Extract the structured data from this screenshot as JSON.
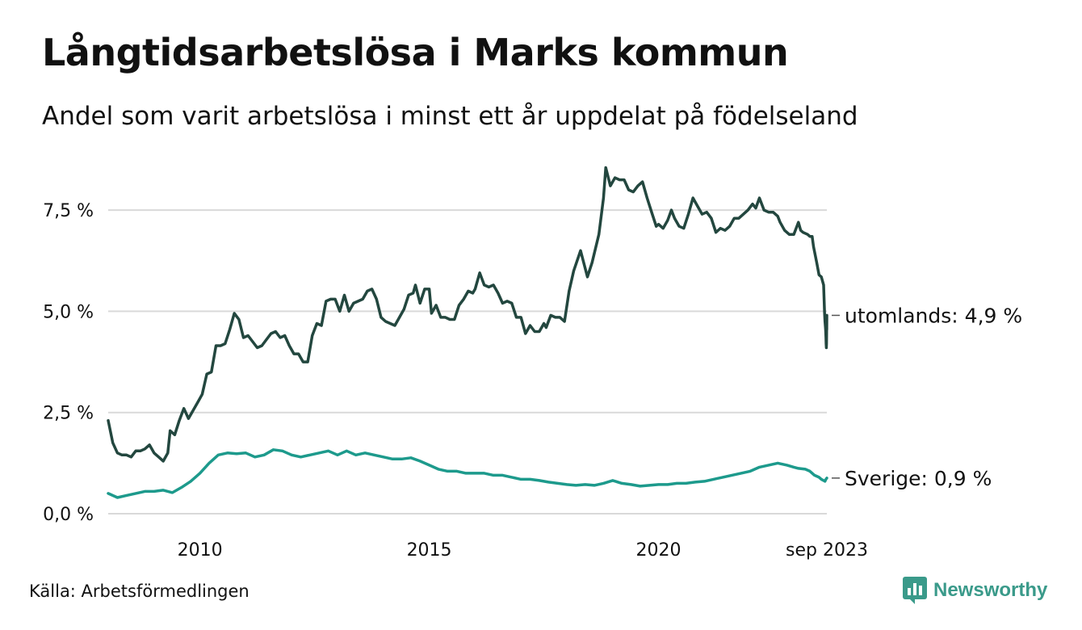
{
  "title": "Långtidsarbetslösa i Marks kommun",
  "subtitle": "Andel som varit arbetslösa i minst ett år uppdelat på födelseland",
  "source": "Källa: Arbetsförmedlingen",
  "brand": "Newsworthy",
  "colors": {
    "utomlands": "#23473f",
    "sverige": "#1d9a8c",
    "grid": "#d9d9d9",
    "brand": "#3a9a8a"
  },
  "chart_data": {
    "type": "line",
    "title": "Långtidsarbetslösa i Marks kommun",
    "ylim": [
      0,
      8.8
    ],
    "xlim": [
      2008.0,
      2023.67
    ],
    "yticks": [
      {
        "value": 0,
        "label": "0,0 %"
      },
      {
        "value": 2.5,
        "label": "2,5 %"
      },
      {
        "value": 5.0,
        "label": "5,0 %"
      },
      {
        "value": 7.5,
        "label": "7,5 %"
      }
    ],
    "xticks": [
      {
        "value": 2010,
        "label": "2010"
      },
      {
        "value": 2015,
        "label": "2015"
      },
      {
        "value": 2020,
        "label": "2020"
      },
      {
        "value": 2023.67,
        "label": "sep 2023"
      }
    ],
    "grid": true,
    "series": [
      {
        "name": "utomlands",
        "label": "utomlands: 4,9 %",
        "points": [
          [
            2008.0,
            2.3
          ],
          [
            2008.1,
            1.75
          ],
          [
            2008.2,
            1.5
          ],
          [
            2008.3,
            1.45
          ],
          [
            2008.4,
            1.45
          ],
          [
            2008.5,
            1.4
          ],
          [
            2008.6,
            1.55
          ],
          [
            2008.7,
            1.55
          ],
          [
            2008.8,
            1.6
          ],
          [
            2008.9,
            1.7
          ],
          [
            2009.0,
            1.5
          ],
          [
            2009.1,
            1.4
          ],
          [
            2009.2,
            1.3
          ],
          [
            2009.3,
            1.5
          ],
          [
            2009.35,
            2.05
          ],
          [
            2009.45,
            1.95
          ],
          [
            2009.55,
            2.3
          ],
          [
            2009.65,
            2.6
          ],
          [
            2009.75,
            2.35
          ],
          [
            2009.85,
            2.55
          ],
          [
            2009.95,
            2.75
          ],
          [
            2010.05,
            2.95
          ],
          [
            2010.15,
            3.45
          ],
          [
            2010.25,
            3.5
          ],
          [
            2010.35,
            4.15
          ],
          [
            2010.45,
            4.15
          ],
          [
            2010.55,
            4.2
          ],
          [
            2010.65,
            4.55
          ],
          [
            2010.75,
            4.95
          ],
          [
            2010.85,
            4.8
          ],
          [
            2010.95,
            4.35
          ],
          [
            2011.05,
            4.4
          ],
          [
            2011.15,
            4.25
          ],
          [
            2011.25,
            4.1
          ],
          [
            2011.35,
            4.15
          ],
          [
            2011.45,
            4.3
          ],
          [
            2011.55,
            4.45
          ],
          [
            2011.65,
            4.5
          ],
          [
            2011.75,
            4.35
          ],
          [
            2011.85,
            4.4
          ],
          [
            2011.95,
            4.15
          ],
          [
            2012.05,
            3.95
          ],
          [
            2012.15,
            3.95
          ],
          [
            2012.25,
            3.75
          ],
          [
            2012.35,
            3.75
          ],
          [
            2012.45,
            4.4
          ],
          [
            2012.55,
            4.7
          ],
          [
            2012.65,
            4.65
          ],
          [
            2012.75,
            5.25
          ],
          [
            2012.85,
            5.3
          ],
          [
            2012.95,
            5.3
          ],
          [
            2013.05,
            5.0
          ],
          [
            2013.15,
            5.4
          ],
          [
            2013.25,
            5.0
          ],
          [
            2013.35,
            5.2
          ],
          [
            2013.45,
            5.25
          ],
          [
            2013.55,
            5.3
          ],
          [
            2013.65,
            5.5
          ],
          [
            2013.75,
            5.55
          ],
          [
            2013.85,
            5.3
          ],
          [
            2013.95,
            4.85
          ],
          [
            2014.05,
            4.75
          ],
          [
            2014.15,
            4.7
          ],
          [
            2014.25,
            4.65
          ],
          [
            2014.35,
            4.85
          ],
          [
            2014.45,
            5.05
          ],
          [
            2014.55,
            5.4
          ],
          [
            2014.65,
            5.45
          ],
          [
            2014.7,
            5.65
          ],
          [
            2014.8,
            5.2
          ],
          [
            2014.9,
            5.55
          ],
          [
            2015.0,
            5.55
          ],
          [
            2015.05,
            4.95
          ],
          [
            2015.15,
            5.15
          ],
          [
            2015.25,
            4.85
          ],
          [
            2015.35,
            4.85
          ],
          [
            2015.45,
            4.8
          ],
          [
            2015.55,
            4.8
          ],
          [
            2015.65,
            5.15
          ],
          [
            2015.75,
            5.3
          ],
          [
            2015.85,
            5.5
          ],
          [
            2015.95,
            5.45
          ],
          [
            2016.0,
            5.55
          ],
          [
            2016.1,
            5.95
          ],
          [
            2016.2,
            5.65
          ],
          [
            2016.3,
            5.6
          ],
          [
            2016.4,
            5.65
          ],
          [
            2016.5,
            5.45
          ],
          [
            2016.6,
            5.2
          ],
          [
            2016.7,
            5.25
          ],
          [
            2016.8,
            5.2
          ],
          [
            2016.9,
            4.85
          ],
          [
            2017.0,
            4.85
          ],
          [
            2017.1,
            4.45
          ],
          [
            2017.2,
            4.65
          ],
          [
            2017.3,
            4.5
          ],
          [
            2017.4,
            4.5
          ],
          [
            2017.5,
            4.7
          ],
          [
            2017.55,
            4.6
          ],
          [
            2017.65,
            4.9
          ],
          [
            2017.75,
            4.85
          ],
          [
            2017.85,
            4.85
          ],
          [
            2017.95,
            4.75
          ],
          [
            2018.05,
            5.5
          ],
          [
            2018.15,
            6.0
          ],
          [
            2018.3,
            6.5
          ],
          [
            2018.45,
            5.85
          ],
          [
            2018.55,
            6.2
          ],
          [
            2018.7,
            6.9
          ],
          [
            2018.8,
            7.8
          ],
          [
            2018.85,
            8.55
          ],
          [
            2018.95,
            8.1
          ],
          [
            2019.05,
            8.3
          ],
          [
            2019.15,
            8.25
          ],
          [
            2019.25,
            8.25
          ],
          [
            2019.35,
            8.0
          ],
          [
            2019.45,
            7.95
          ],
          [
            2019.55,
            8.1
          ],
          [
            2019.65,
            8.2
          ],
          [
            2019.75,
            7.8
          ],
          [
            2019.85,
            7.45
          ],
          [
            2019.95,
            7.1
          ],
          [
            2020.0,
            7.15
          ],
          [
            2020.1,
            7.05
          ],
          [
            2020.2,
            7.25
          ],
          [
            2020.28,
            7.5
          ],
          [
            2020.35,
            7.3
          ],
          [
            2020.45,
            7.1
          ],
          [
            2020.55,
            7.05
          ],
          [
            2020.65,
            7.4
          ],
          [
            2020.75,
            7.8
          ],
          [
            2020.85,
            7.6
          ],
          [
            2020.95,
            7.4
          ],
          [
            2021.05,
            7.45
          ],
          [
            2021.15,
            7.3
          ],
          [
            2021.25,
            6.95
          ],
          [
            2021.35,
            7.05
          ],
          [
            2021.45,
            7.0
          ],
          [
            2021.55,
            7.1
          ],
          [
            2021.65,
            7.3
          ],
          [
            2021.75,
            7.3
          ],
          [
            2021.85,
            7.4
          ],
          [
            2021.95,
            7.5
          ],
          [
            2022.05,
            7.65
          ],
          [
            2022.12,
            7.55
          ],
          [
            2022.2,
            7.8
          ],
          [
            2022.3,
            7.5
          ],
          [
            2022.4,
            7.45
          ],
          [
            2022.5,
            7.45
          ],
          [
            2022.6,
            7.35
          ],
          [
            2022.65,
            7.2
          ],
          [
            2022.75,
            7.0
          ],
          [
            2022.85,
            6.9
          ],
          [
            2022.95,
            6.9
          ],
          [
            2023.05,
            7.2
          ],
          [
            2023.1,
            7.0
          ],
          [
            2023.15,
            6.95
          ],
          [
            2023.25,
            6.9
          ],
          [
            2023.3,
            6.85
          ],
          [
            2023.35,
            6.85
          ],
          [
            2023.38,
            6.6
          ],
          [
            2023.45,
            6.2
          ],
          [
            2023.5,
            5.9
          ],
          [
            2023.55,
            5.85
          ],
          [
            2023.6,
            5.65
          ],
          [
            2023.62,
            4.95
          ],
          [
            2023.63,
            4.75
          ],
          [
            2023.64,
            4.6
          ],
          [
            2023.645,
            4.5
          ],
          [
            2023.65,
            4.35
          ],
          [
            2023.655,
            4.2
          ],
          [
            2023.66,
            4.1
          ],
          [
            2023.663,
            4.2
          ],
          [
            2023.665,
            4.4
          ],
          [
            2023.667,
            4.7
          ],
          [
            2023.668,
            4.55
          ],
          [
            2023.669,
            4.6
          ],
          [
            2023.67,
            4.9
          ]
        ]
      },
      {
        "name": "Sverige",
        "label": "Sverige: 0,9 %",
        "points": [
          [
            2008.0,
            0.5
          ],
          [
            2008.2,
            0.4
          ],
          [
            2008.4,
            0.45
          ],
          [
            2008.6,
            0.5
          ],
          [
            2008.8,
            0.55
          ],
          [
            2009.0,
            0.55
          ],
          [
            2009.2,
            0.58
          ],
          [
            2009.4,
            0.52
          ],
          [
            2009.6,
            0.65
          ],
          [
            2009.8,
            0.8
          ],
          [
            2010.0,
            1.0
          ],
          [
            2010.2,
            1.25
          ],
          [
            2010.4,
            1.45
          ],
          [
            2010.6,
            1.5
          ],
          [
            2010.8,
            1.48
          ],
          [
            2011.0,
            1.5
          ],
          [
            2011.2,
            1.4
          ],
          [
            2011.4,
            1.45
          ],
          [
            2011.6,
            1.58
          ],
          [
            2011.8,
            1.55
          ],
          [
            2012.0,
            1.45
          ],
          [
            2012.2,
            1.4
          ],
          [
            2012.4,
            1.45
          ],
          [
            2012.6,
            1.5
          ],
          [
            2012.8,
            1.55
          ],
          [
            2013.0,
            1.45
          ],
          [
            2013.2,
            1.55
          ],
          [
            2013.4,
            1.45
          ],
          [
            2013.6,
            1.5
          ],
          [
            2013.8,
            1.45
          ],
          [
            2014.0,
            1.4
          ],
          [
            2014.2,
            1.35
          ],
          [
            2014.4,
            1.35
          ],
          [
            2014.6,
            1.38
          ],
          [
            2014.8,
            1.3
          ],
          [
            2015.0,
            1.2
          ],
          [
            2015.2,
            1.1
          ],
          [
            2015.4,
            1.05
          ],
          [
            2015.6,
            1.05
          ],
          [
            2015.8,
            1.0
          ],
          [
            2016.0,
            1.0
          ],
          [
            2016.2,
            1.0
          ],
          [
            2016.4,
            0.95
          ],
          [
            2016.6,
            0.95
          ],
          [
            2016.8,
            0.9
          ],
          [
            2017.0,
            0.85
          ],
          [
            2017.2,
            0.85
          ],
          [
            2017.4,
            0.82
          ],
          [
            2017.6,
            0.78
          ],
          [
            2017.8,
            0.75
          ],
          [
            2018.0,
            0.72
          ],
          [
            2018.2,
            0.7
          ],
          [
            2018.4,
            0.72
          ],
          [
            2018.6,
            0.7
          ],
          [
            2018.8,
            0.75
          ],
          [
            2019.0,
            0.82
          ],
          [
            2019.2,
            0.75
          ],
          [
            2019.4,
            0.72
          ],
          [
            2019.6,
            0.68
          ],
          [
            2019.8,
            0.7
          ],
          [
            2020.0,
            0.72
          ],
          [
            2020.2,
            0.72
          ],
          [
            2020.4,
            0.75
          ],
          [
            2020.6,
            0.75
          ],
          [
            2020.8,
            0.78
          ],
          [
            2021.0,
            0.8
          ],
          [
            2021.2,
            0.85
          ],
          [
            2021.4,
            0.9
          ],
          [
            2021.6,
            0.95
          ],
          [
            2021.8,
            1.0
          ],
          [
            2022.0,
            1.05
          ],
          [
            2022.2,
            1.15
          ],
          [
            2022.4,
            1.2
          ],
          [
            2022.6,
            1.25
          ],
          [
            2022.8,
            1.2
          ],
          [
            2022.95,
            1.15
          ],
          [
            2023.05,
            1.12
          ],
          [
            2023.2,
            1.1
          ],
          [
            2023.3,
            1.05
          ],
          [
            2023.4,
            0.95
          ],
          [
            2023.5,
            0.9
          ],
          [
            2023.55,
            0.85
          ],
          [
            2023.6,
            0.82
          ],
          [
            2023.63,
            0.8
          ],
          [
            2023.65,
            0.85
          ],
          [
            2023.67,
            0.88
          ]
        ]
      }
    ]
  }
}
